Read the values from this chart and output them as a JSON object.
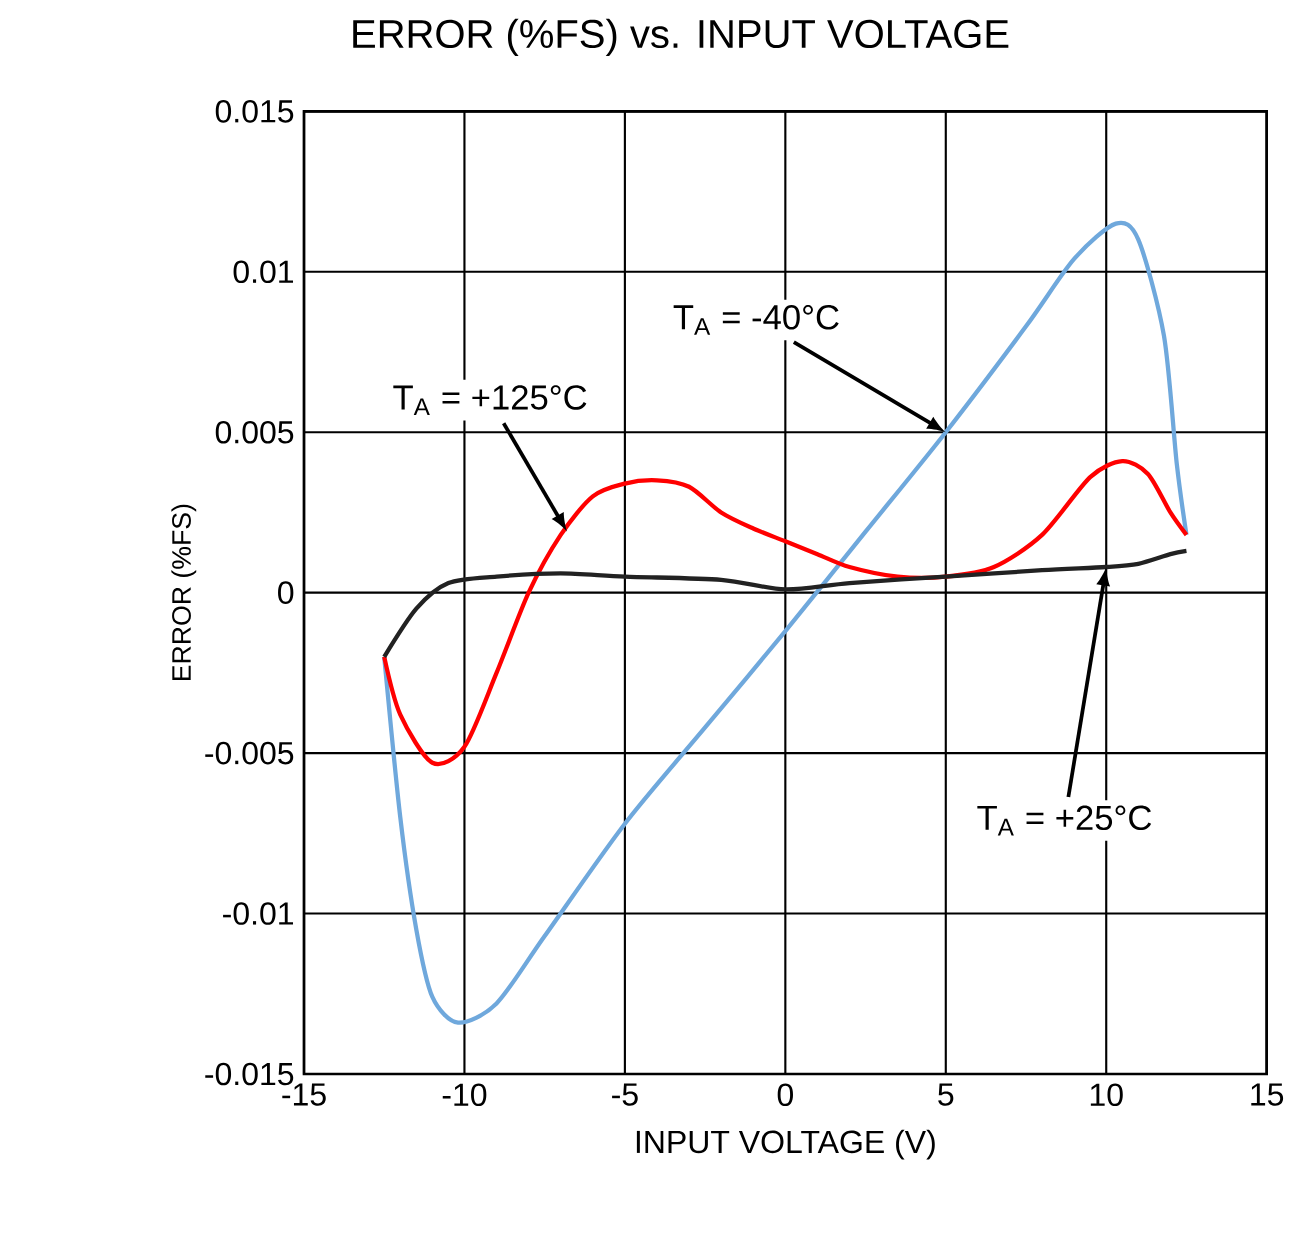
{
  "chart_data": {
    "type": "line",
    "title": "ERROR (%FS) vs. INPUT VOLTAGE",
    "xlabel": "INPUT VOLTAGE (V)",
    "ylabel": "ERROR (%FS)",
    "xlim": [
      -15,
      15
    ],
    "xticks": [
      -15,
      -10,
      -5,
      0,
      5,
      10,
      15
    ],
    "ylim": [
      -0.015,
      0.015
    ],
    "yticks": [
      -0.015,
      -0.01,
      -0.005,
      0,
      0.005,
      0.01,
      0.015
    ],
    "grid": true,
    "marker": "none",
    "line_style": "solid",
    "series": [
      {
        "color": "#6fa8dc",
        "x": [
          -12.5,
          -12,
          -11.5,
          -11,
          -10.2,
          -9,
          -7.5,
          -5,
          -2.5,
          0,
          2.5,
          5,
          7.5,
          9,
          10.3,
          11,
          11.8,
          12.2,
          12.5
        ],
        "values": [
          -0.002,
          -0.007,
          -0.0105,
          -0.0126,
          -0.0134,
          -0.0128,
          -0.0107,
          -0.0072,
          -0.0042,
          -0.0012,
          0.0019,
          0.005,
          0.0083,
          0.0104,
          0.0115,
          0.011,
          0.008,
          0.004,
          0.0018
        ]
      },
      {
        "color": "#ff0000",
        "x": [
          -12.5,
          -12,
          -11,
          -10,
          -9,
          -8,
          -7,
          -6,
          -5,
          -4,
          -3,
          -2,
          -1,
          0,
          1,
          2,
          3.5,
          5,
          6.5,
          8,
          9.5,
          10.5,
          11.3,
          12,
          12.5
        ],
        "values": [
          -0.002,
          -0.0038,
          -0.0053,
          -0.0048,
          -0.0025,
          0,
          0.0018,
          0.003,
          0.0034,
          0.0035,
          0.0033,
          0.0025,
          0.002,
          0.0016,
          0.0012,
          0.0008,
          0.0005,
          0.0005,
          0.0008,
          0.0018,
          0.0036,
          0.0041,
          0.0037,
          0.0025,
          0.0018
        ]
      },
      {
        "color": "#222222",
        "x": [
          -12.5,
          -11.5,
          -10.5,
          -9,
          -7,
          -5,
          -2,
          0,
          2,
          5,
          8,
          10,
          11,
          12,
          12.5
        ],
        "values": [
          -0.002,
          -0.0005,
          0.0003,
          0.0005,
          0.0006,
          0.0005,
          0.0004,
          0.0001,
          0.0003,
          0.0005,
          0.0007,
          0.0008,
          0.0009,
          0.0012,
          0.0013
        ]
      }
    ],
    "annotations": [
      {
        "text": "T$_{A}$ = -40°C",
        "x": 5,
        "y": 0.005
      },
      {
        "text": "T$_{A}$ = +125°C",
        "x": -6.8,
        "y": 0.0019
      },
      {
        "text": "T$_{A}$ = +25°C",
        "x": 10,
        "y": 0.0008
      }
    ]
  }
}
